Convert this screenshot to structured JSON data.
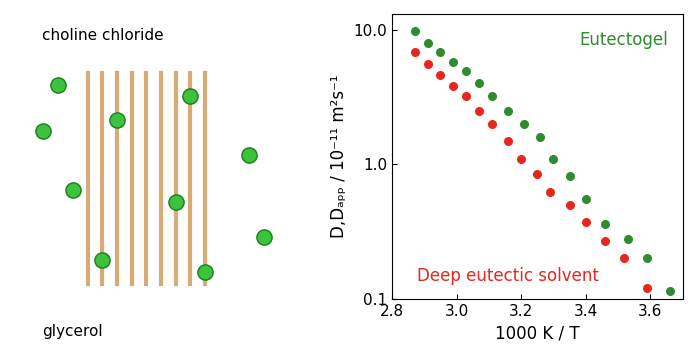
{
  "chart_data": {
    "type": "scatter",
    "x_label": "1000 K / T",
    "y_label": "D,Dₐₚₚ / 10⁻¹¹ m²s⁻¹",
    "annotations": [
      "choline chloride",
      "glycerol"
    ],
    "log": "y",
    "xlim": [
      2.8,
      3.7
    ],
    "ylim": [
      0.1,
      13
    ],
    "xticks": [
      2.8,
      3.0,
      3.2,
      3.4,
      3.6
    ],
    "yticks": [
      0.1,
      1.0,
      10.0
    ],
    "grid": false,
    "series": [
      {
        "name": "Eutectogel",
        "color": "#2e8b2e",
        "marker": "o",
        "x": [
          2.87,
          2.91,
          2.95,
          2.99,
          3.03,
          3.07,
          3.11,
          3.16,
          3.21,
          3.26,
          3.3,
          3.35,
          3.4,
          3.46,
          3.53,
          3.59,
          3.66
        ],
        "values": [
          9.8,
          8.0,
          6.8,
          5.8,
          4.9,
          4.0,
          3.2,
          2.5,
          2.0,
          1.6,
          1.1,
          0.82,
          0.55,
          0.36,
          0.28,
          0.2,
          0.115
        ]
      },
      {
        "name": "Deep eutectic solvent",
        "color": "#e8251f",
        "marker": "o",
        "x": [
          2.87,
          2.91,
          2.95,
          2.99,
          3.03,
          3.07,
          3.11,
          3.16,
          3.2,
          3.25,
          3.29,
          3.35,
          3.4,
          3.46,
          3.52,
          3.59
        ],
        "values": [
          6.8,
          5.6,
          4.6,
          3.8,
          3.2,
          2.5,
          2.0,
          1.5,
          1.1,
          0.85,
          0.62,
          0.5,
          0.37,
          0.27,
          0.2,
          0.12
        ]
      }
    ]
  }
}
